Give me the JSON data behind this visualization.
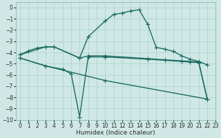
{
  "xlabel": "Humidex (Indice chaleur)",
  "xlim": [
    -0.5,
    23
  ],
  "ylim": [
    -10,
    0.5
  ],
  "yticks": [
    0,
    -1,
    -2,
    -3,
    -4,
    -5,
    -6,
    -7,
    -8,
    -9,
    -10
  ],
  "xticks": [
    0,
    1,
    2,
    3,
    4,
    5,
    6,
    7,
    8,
    9,
    10,
    11,
    12,
    13,
    14,
    15,
    16,
    17,
    18,
    19,
    20,
    21,
    22,
    23
  ],
  "background_color": "#cfe8e5",
  "grid_color": "#aacfcc",
  "line_color": "#1a6b62",
  "line1_x": [
    0,
    1,
    2,
    3,
    4,
    7,
    8,
    10,
    11,
    12,
    13,
    14,
    15,
    16,
    17,
    18,
    19,
    20,
    21,
    22
  ],
  "line1_y": [
    -4.2,
    -3.85,
    -3.6,
    -3.5,
    -3.5,
    -4.5,
    -2.6,
    -1.2,
    -0.6,
    -0.5,
    -0.3,
    -0.2,
    -1.5,
    -3.55,
    -3.7,
    -3.9,
    -4.3,
    -4.6,
    -4.8,
    -5.1
  ],
  "line2_x": [
    0,
    3,
    4,
    7,
    8,
    10,
    15,
    17,
    19,
    20,
    21,
    22
  ],
  "line2_y": [
    -4.2,
    -3.5,
    -3.5,
    -4.5,
    -4.3,
    -4.3,
    -4.55,
    -4.65,
    -4.75,
    -4.8,
    -4.85,
    -8.15
  ],
  "line3_x": [
    0,
    3,
    5,
    6,
    7,
    8,
    10,
    15,
    17,
    19,
    20,
    21,
    22
  ],
  "line3_y": [
    -4.5,
    -5.2,
    -5.5,
    -5.9,
    -9.75,
    -4.4,
    -4.4,
    -4.6,
    -4.7,
    -4.8,
    -4.85,
    -4.9,
    -8.15
  ],
  "line4_x": [
    0,
    3,
    10,
    22
  ],
  "line4_y": [
    -4.5,
    -5.2,
    -6.5,
    -8.15
  ]
}
